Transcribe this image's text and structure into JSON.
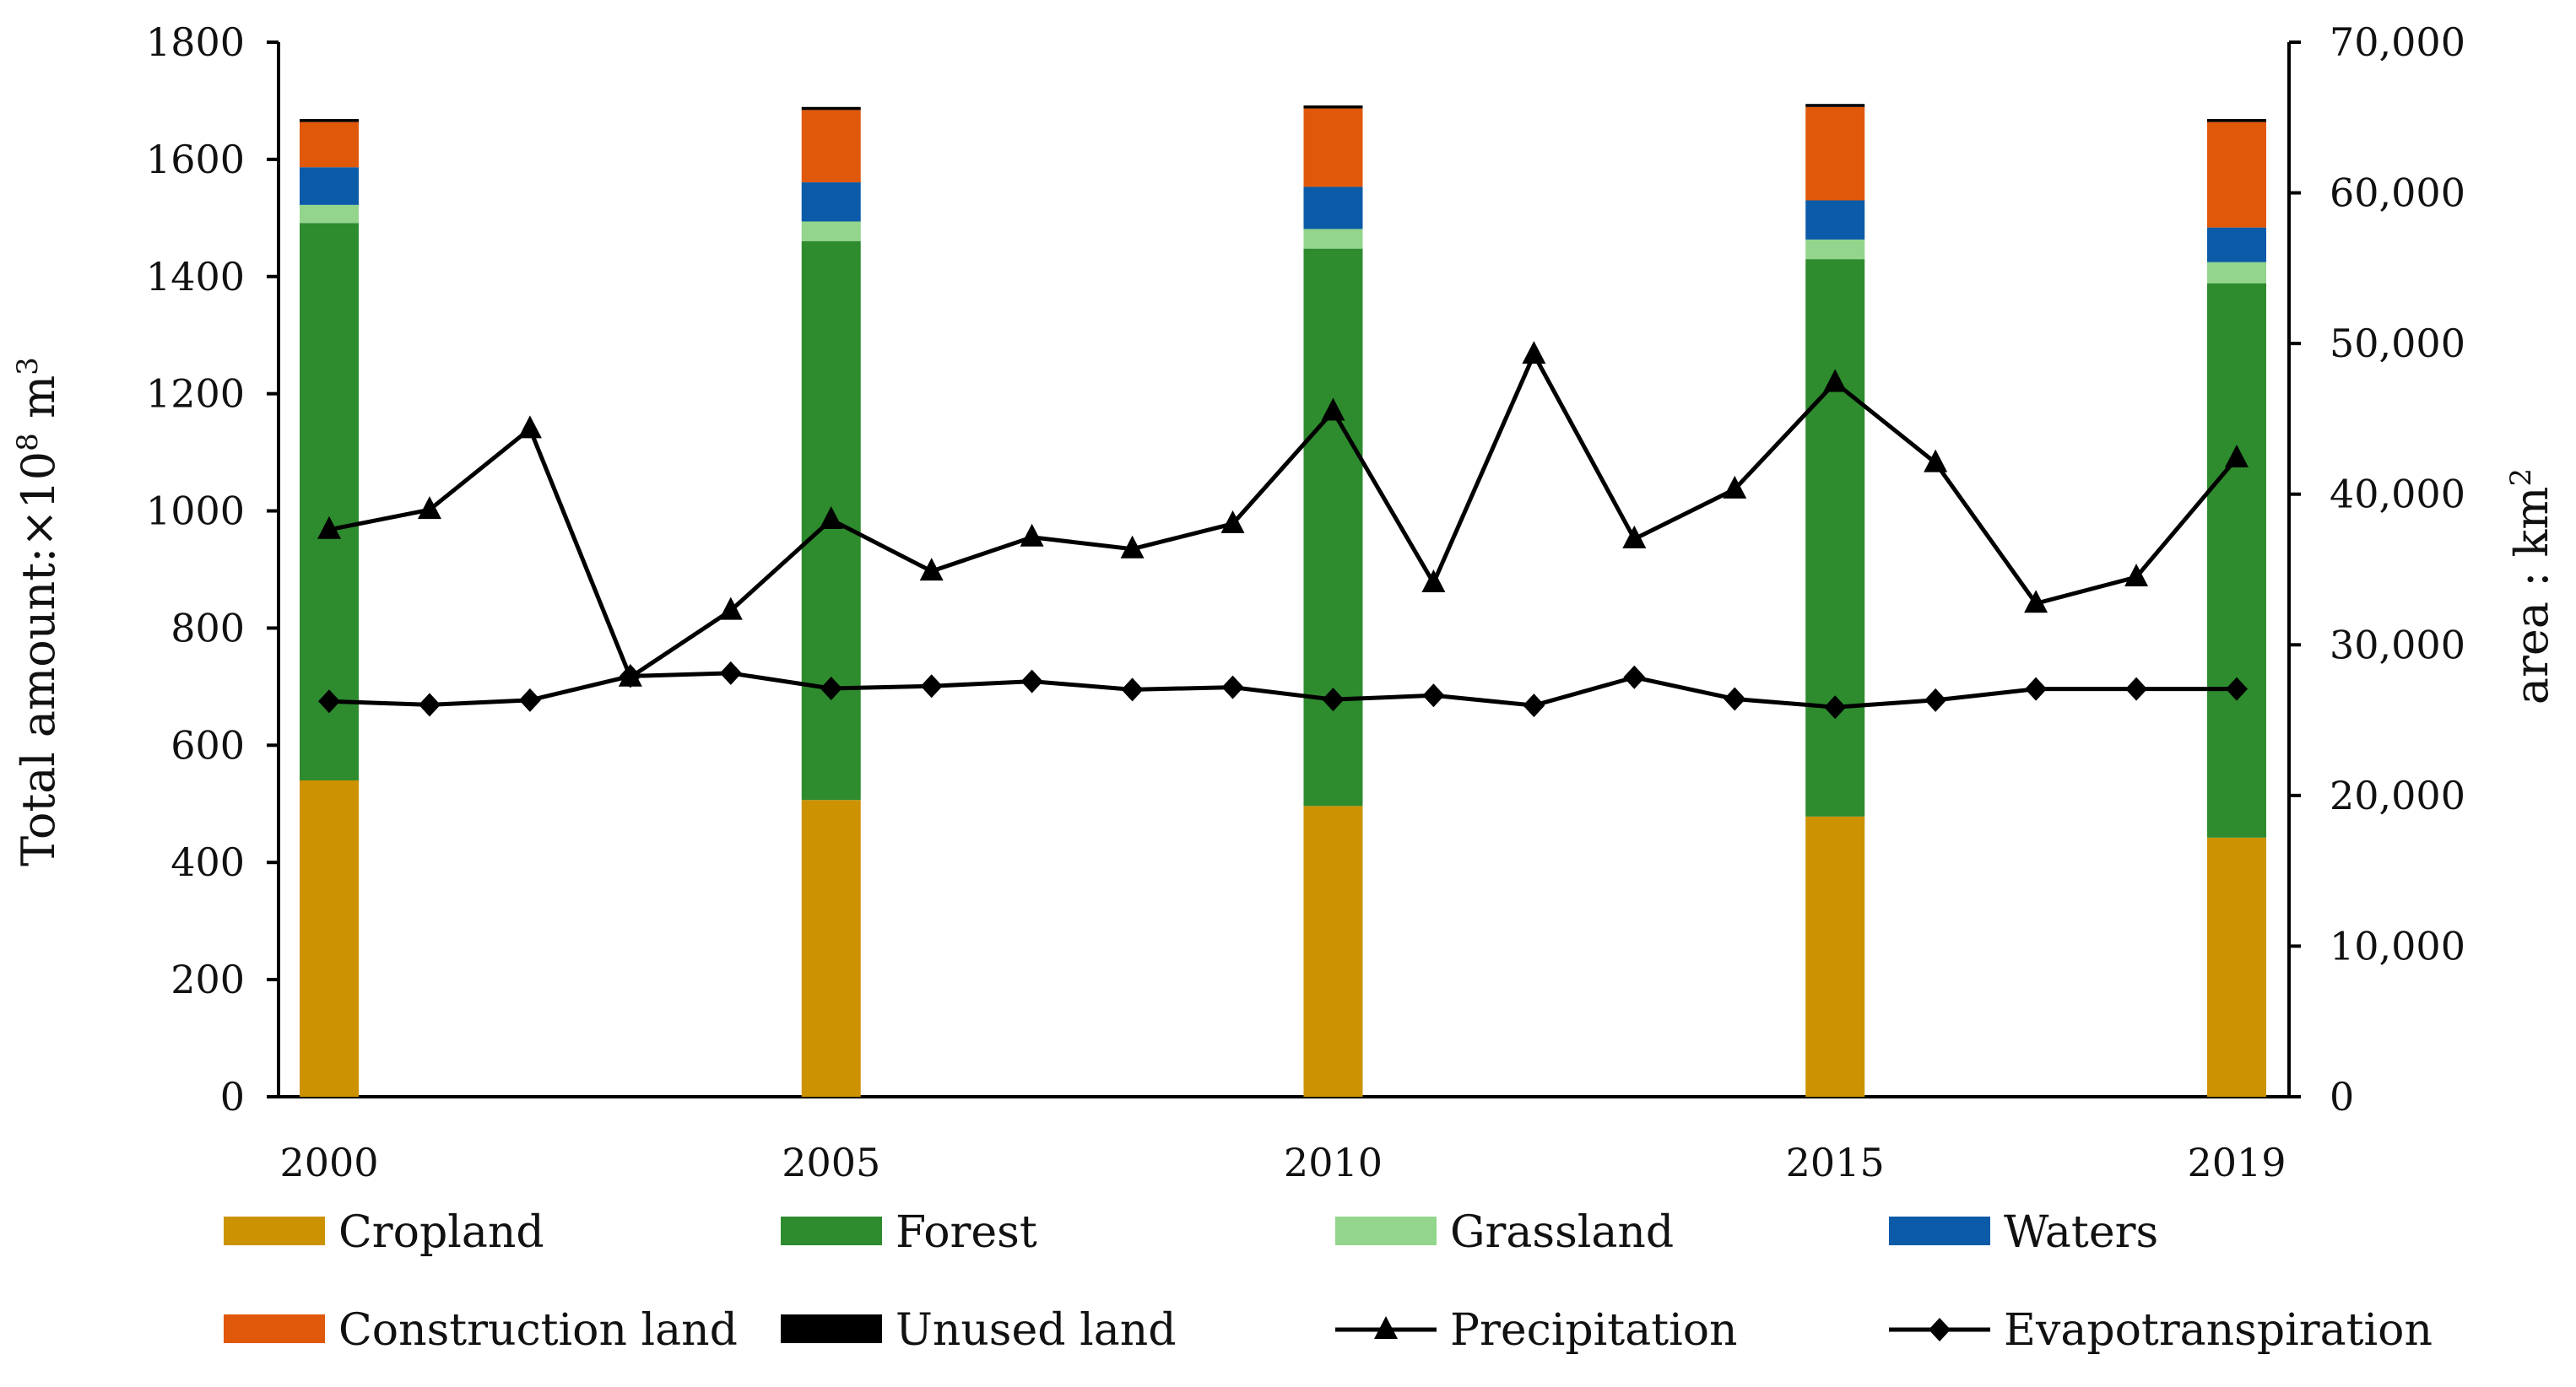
{
  "chart_data": {
    "type": "bar-line-combo",
    "title": "",
    "years": [
      2000,
      2001,
      2002,
      2003,
      2004,
      2005,
      2006,
      2007,
      2008,
      2009,
      2010,
      2011,
      2012,
      2013,
      2014,
      2015,
      2016,
      2017,
      2018,
      2019
    ],
    "x_tick_labels": [
      "2000",
      "2005",
      "2010",
      "2015",
      "2019"
    ],
    "left_axis": {
      "label_prefix": "Total amount:×10",
      "label_exponent": "8",
      "label_unit": " m",
      "label_unit_exponent": "3",
      "ylim": [
        0,
        1800
      ],
      "ticks": [
        "0",
        "200",
        "400",
        "600",
        "800",
        "1000",
        "1200",
        "1400",
        "1600",
        "1800"
      ]
    },
    "right_axis": {
      "label": "area : km",
      "label_exponent": "2",
      "ylim": [
        0,
        70000
      ],
      "ticks": [
        "0",
        "10,000",
        "20,000",
        "30,000",
        "40,000",
        "50,000",
        "60,000",
        "70,000"
      ]
    },
    "bar_years": [
      2000,
      2005,
      2010,
      2015,
      2019
    ],
    "bar_series": [
      {
        "name": "Cropland",
        "color": "#CC9200",
        "values": [
          21000,
          19700,
          19300,
          18600,
          17200
        ]
      },
      {
        "name": "Forest",
        "color": "#2E8B2E",
        "values": [
          37000,
          37100,
          37000,
          37000,
          36800
        ]
      },
      {
        "name": "Grassland",
        "color": "#93D58C",
        "values": [
          1200,
          1300,
          1300,
          1300,
          1400
        ]
      },
      {
        "name": "Waters",
        "color": "#0C5BA8",
        "values": [
          2500,
          2600,
          2800,
          2600,
          2300
        ]
      },
      {
        "name": "Construction land",
        "color": "#E0580A",
        "values": [
          3000,
          4800,
          5200,
          6200,
          7000
        ]
      },
      {
        "name": "Unused land",
        "color": "#000000",
        "values": [
          200,
          200,
          200,
          200,
          200
        ]
      }
    ],
    "line_series": [
      {
        "name": "Precipitation",
        "marker": "triangle",
        "color": "#000000",
        "values": [
          968,
          1002,
          1140,
          716,
          830,
          985,
          897,
          955,
          935,
          978,
          1170,
          877,
          1267,
          952,
          1037,
          1219,
          1082,
          842,
          887,
          1090
        ]
      },
      {
        "name": "Evapotranspiration",
        "marker": "diamond",
        "color": "#000000",
        "values": [
          675,
          669,
          677,
          718,
          723,
          697,
          701,
          709,
          695,
          699,
          678,
          685,
          668,
          716,
          679,
          665,
          677,
          696,
          696,
          696
        ]
      }
    ],
    "legend": [
      {
        "name": "Cropland",
        "kind": "box",
        "color": "#CC9200"
      },
      {
        "name": "Forest",
        "kind": "box",
        "color": "#2E8B2E"
      },
      {
        "name": "Grassland",
        "kind": "box",
        "color": "#93D58C"
      },
      {
        "name": "Waters",
        "kind": "box",
        "color": "#0C5BA8"
      },
      {
        "name": "Construction land",
        "kind": "box",
        "color": "#E0580A"
      },
      {
        "name": "Unused land",
        "kind": "box",
        "color": "#000000"
      },
      {
        "name": "Precipitation",
        "kind": "line",
        "marker": "triangle",
        "color": "#000000"
      },
      {
        "name": "Evapotranspiration",
        "kind": "line",
        "marker": "diamond",
        "color": "#000000"
      }
    ],
    "legend_position": "bottom"
  }
}
